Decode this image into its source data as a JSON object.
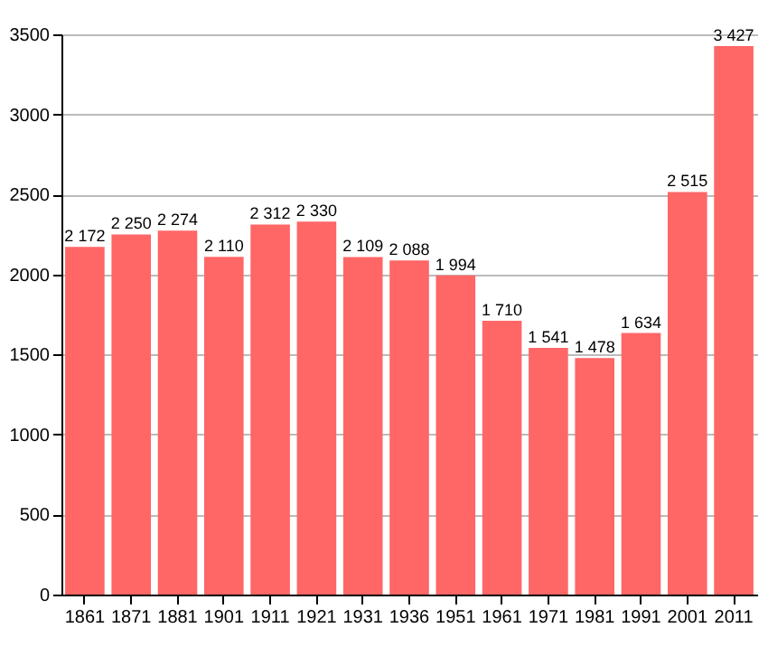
{
  "chart_data": {
    "type": "bar",
    "categories": [
      "1861",
      "1871",
      "1881",
      "1901",
      "1911",
      "1921",
      "1931",
      "1936",
      "1951",
      "1961",
      "1971",
      "1981",
      "1991",
      "2001",
      "2011"
    ],
    "series": [
      {
        "color": "#ff6666",
        "values": [
          2172,
          2250,
          2274,
          2110,
          2312,
          2330,
          2109,
          2088,
          1994,
          1710,
          1541,
          1478,
          1634,
          2515,
          3427
        ]
      }
    ],
    "value_labels": [
      "2 172",
      "2 250",
      "2 274",
      "2 110",
      "2 312",
      "2 330",
      "2 109",
      "2 088",
      "1 994",
      "1 710",
      "1 541",
      "1 478",
      "1 634",
      "2 515",
      "3 427"
    ],
    "ylim": [
      0,
      3500
    ],
    "yticks": [
      0,
      500,
      1000,
      1500,
      2000,
      2500,
      3000,
      3500
    ],
    "grid": "y"
  }
}
